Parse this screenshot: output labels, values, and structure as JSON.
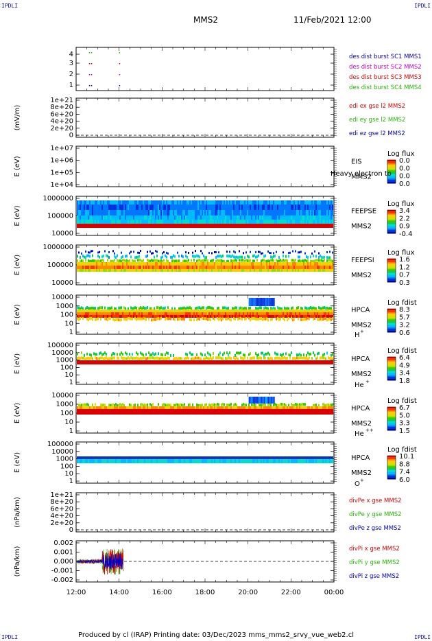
{
  "corner_label": "IPDLI",
  "header": {
    "spacecraft": "MMS2",
    "datetime": "11/Feb/2021 12:00"
  },
  "footer": {
    "text": "Produced by cl (IRAP)   Printing date: 03/Dec/2023   mms_mms2_srvy_vue_web2.cl"
  },
  "colors": {
    "red": "#dd0000",
    "green": "#22bb00",
    "blue": "#0000cc",
    "magenta": "#cc00cc"
  },
  "chart_data": [
    {
      "type": "scatter",
      "id": "burst",
      "yticks": [
        "1",
        "2",
        "3",
        "4"
      ],
      "legend": [
        {
          "label": "des dist burst SC1 MMS1",
          "color": "#0000cc"
        },
        {
          "label": "des dist burst SC2 MMS2",
          "color": "#cc00cc"
        },
        {
          "label": "des dist burst SC3 MMS3",
          "color": "#dd0000"
        },
        {
          "label": "des dist burst SC4 MMS4",
          "color": "#22bb00"
        }
      ],
      "bursts_hours": [
        12.6,
        14.0
      ]
    },
    {
      "type": "line",
      "id": "edi",
      "ylabel": "(mV/m)",
      "yticks": [
        "0",
        "2e+20",
        "4e+20",
        "6e+20",
        "8e+20",
        "1e+21"
      ],
      "legend": [
        {
          "label": "edi ex gse l2 MMS2",
          "color": "#dd0000"
        },
        {
          "label": "edi ey gse l2 MMS2",
          "color": "#22bb00"
        },
        {
          "label": "edi ez gse l2 MMS2",
          "color": "#0000cc"
        }
      ]
    },
    {
      "type": "heatmap",
      "id": "eis",
      "ylabel": "E (eV)",
      "yticks": [
        "1e+04",
        "1e+05",
        "1e+06",
        "1e+07"
      ],
      "instrument": "EIS",
      "spacecraft": "MMS2",
      "overlay_text": "Heavy electron to",
      "colorbar_title": "Log flux",
      "colorbar_ticks": [
        "0.0",
        "0.0",
        "0.0",
        "0.0"
      ]
    },
    {
      "type": "heatmap",
      "id": "feepse",
      "ylabel": "E (eV)",
      "yticks": [
        "10000",
        "100000",
        "1000000"
      ],
      "instrument": "FEEPSE",
      "spacecraft": "MMS2",
      "colorbar_title": "Log flux",
      "colorbar_ticks": [
        "3.4",
        "2.2",
        "0.9",
        "-0.4"
      ]
    },
    {
      "type": "heatmap",
      "id": "feepsi",
      "ylabel": "E (eV)",
      "yticks": [
        "10000",
        "100000",
        "1000000"
      ],
      "instrument": "FEEPSI",
      "spacecraft": "MMS2",
      "colorbar_title": "Log flux",
      "colorbar_ticks": [
        "1.6",
        "1.2",
        "0.7",
        "0.3"
      ]
    },
    {
      "type": "heatmap",
      "id": "hpca_h",
      "ylabel": "E (eV)",
      "yticks": [
        "1",
        "10",
        "100",
        "1000",
        "10000"
      ],
      "instrument": "HPCA",
      "spacecraft": "MMS2",
      "species": "H",
      "charge": "+",
      "colorbar_title": "Log fdist",
      "colorbar_ticks": [
        "8.3",
        "5.7",
        "3.2",
        "0.6"
      ]
    },
    {
      "type": "heatmap",
      "id": "hpca_he",
      "ylabel": "E (eV)",
      "yticks": [
        "1",
        "10",
        "100",
        "1000",
        "10000",
        "100000"
      ],
      "instrument": "HPCA",
      "spacecraft": "MMS2",
      "species": "He",
      "charge": "+",
      "colorbar_title": "Log fdist",
      "colorbar_ticks": [
        "6.4",
        "4.9",
        "3.4",
        "1.8"
      ]
    },
    {
      "type": "heatmap",
      "id": "hpca_he2",
      "ylabel": "E (eV)",
      "yticks": [
        "1",
        "10",
        "100",
        "1000",
        "10000"
      ],
      "instrument": "HPCA",
      "spacecraft": "MMS2",
      "species": "He",
      "charge": "++",
      "colorbar_title": "Log fdist",
      "colorbar_ticks": [
        "6.7",
        "5.0",
        "3.3",
        "1.5"
      ]
    },
    {
      "type": "heatmap",
      "id": "hpca_o",
      "ylabel": "E (eV)",
      "yticks": [
        "1",
        "10",
        "100",
        "1000",
        "10000",
        "100000"
      ],
      "instrument": "HPCA",
      "spacecraft": "MMS2",
      "species": "O",
      "charge": "+",
      "colorbar_title": "Log fdist",
      "colorbar_ticks": [
        "10.1",
        "8.8",
        "7.4",
        "6.0"
      ]
    },
    {
      "type": "line",
      "id": "divpe",
      "ylabel": "(nPa/km)",
      "yticks": [
        "0",
        "2e+20",
        "4e+20",
        "6e+20",
        "8e+20",
        "1e+21"
      ],
      "legend": [
        {
          "label": "divPe x gse MMS2",
          "color": "#dd0000"
        },
        {
          "label": "divPe y gse MMS2",
          "color": "#22bb00"
        },
        {
          "label": "divPe z gse MMS2",
          "color": "#0000cc"
        }
      ]
    },
    {
      "type": "line",
      "id": "divpi",
      "ylabel": "(nPa/km)",
      "yticks": [
        "-0.002",
        "-0.001",
        "0.000",
        "0.001",
        "0.002"
      ],
      "ylim": [
        -0.0025,
        0.0025
      ],
      "x_data_range_hours": [
        12.0,
        14.2
      ],
      "legend": [
        {
          "label": "divPi x gse MMS2",
          "color": "#dd0000"
        },
        {
          "label": "divPi y gse MMS2",
          "color": "#22bb00"
        },
        {
          "label": "divPi z gse MMS2",
          "color": "#0000cc"
        }
      ]
    }
  ],
  "xaxis": {
    "tick_labels": [
      "12:00",
      "14:00",
      "16:00",
      "18:00",
      "20:00",
      "22:00",
      "00:00"
    ],
    "range_hours": [
      12,
      24
    ]
  }
}
